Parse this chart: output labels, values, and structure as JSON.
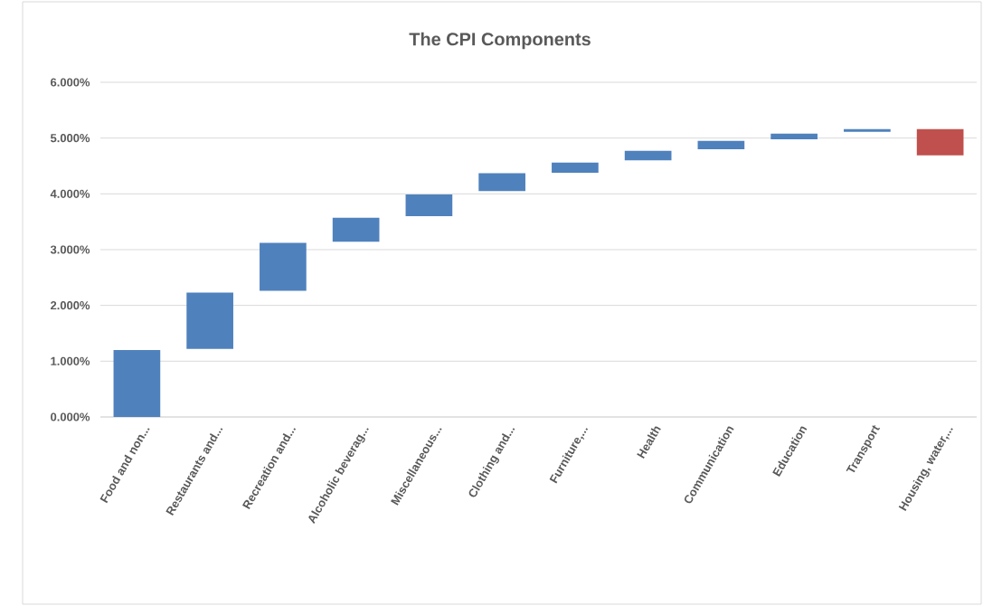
{
  "chart_data": {
    "type": "bar",
    "title": "The CPI Components",
    "categories": [
      "Food and non...",
      "Restaurants and...",
      "Recreation and...",
      "Alcoholic beverag...",
      "Miscellaneous...",
      "Clothing and...",
      "Furniture,...",
      "Health",
      "Communication",
      "Education",
      "Transport",
      "Housing, water,..."
    ],
    "values": [
      1.2,
      1.01,
      0.86,
      0.43,
      0.39,
      0.32,
      0.18,
      0.17,
      0.15,
      0.1,
      0.05,
      -0.47
    ],
    "base": [
      0,
      1.22,
      2.26,
      3.14,
      3.6,
      4.05,
      4.38,
      4.6,
      4.8,
      4.98,
      5.11,
      5.16
    ],
    "colors": [
      "#4f81bd",
      "#4f81bd",
      "#4f81bd",
      "#4f81bd",
      "#4f81bd",
      "#4f81bd",
      "#4f81bd",
      "#4f81bd",
      "#4f81bd",
      "#4f81bd",
      "#4f81bd",
      "#c0504d"
    ],
    "ylim": [
      0,
      6
    ],
    "yticks": [
      {
        "value": 0,
        "label": "0.000%"
      },
      {
        "value": 1,
        "label": "1.000%"
      },
      {
        "value": 2,
        "label": "2.000%"
      },
      {
        "value": 3,
        "label": "3.000%"
      },
      {
        "value": 4,
        "label": "4.000%"
      },
      {
        "value": 5,
        "label": "5.000%"
      },
      {
        "value": 6,
        "label": "6.000%"
      }
    ],
    "grid": "y"
  }
}
